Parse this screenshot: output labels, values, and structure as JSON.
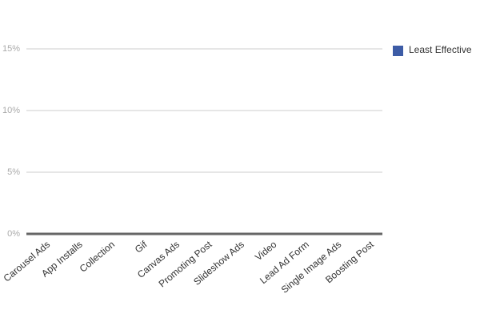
{
  "chart_data": {
    "type": "bar",
    "categories": [
      "Carousel Ads",
      "App Installs",
      "Collection",
      "Gif",
      "Canvas Ads",
      "Promoting Post",
      "Slideshow Ads",
      "Video",
      "Lead Ad Form",
      "Single Image Ads",
      "Boosting Post"
    ],
    "series": [
      {
        "name": "Least Effective",
        "color": "#3d5ca6",
        "values": [
          0,
          0,
          0,
          0,
          0,
          0,
          0,
          0,
          0,
          0,
          0
        ]
      }
    ],
    "ylim": [
      0,
      15
    ],
    "yticks": [
      {
        "value": 0,
        "label": "0%"
      },
      {
        "value": 5,
        "label": "5%"
      },
      {
        "value": 10,
        "label": "10%"
      },
      {
        "value": 15,
        "label": "15%"
      }
    ],
    "grid": true,
    "legend": "right"
  }
}
